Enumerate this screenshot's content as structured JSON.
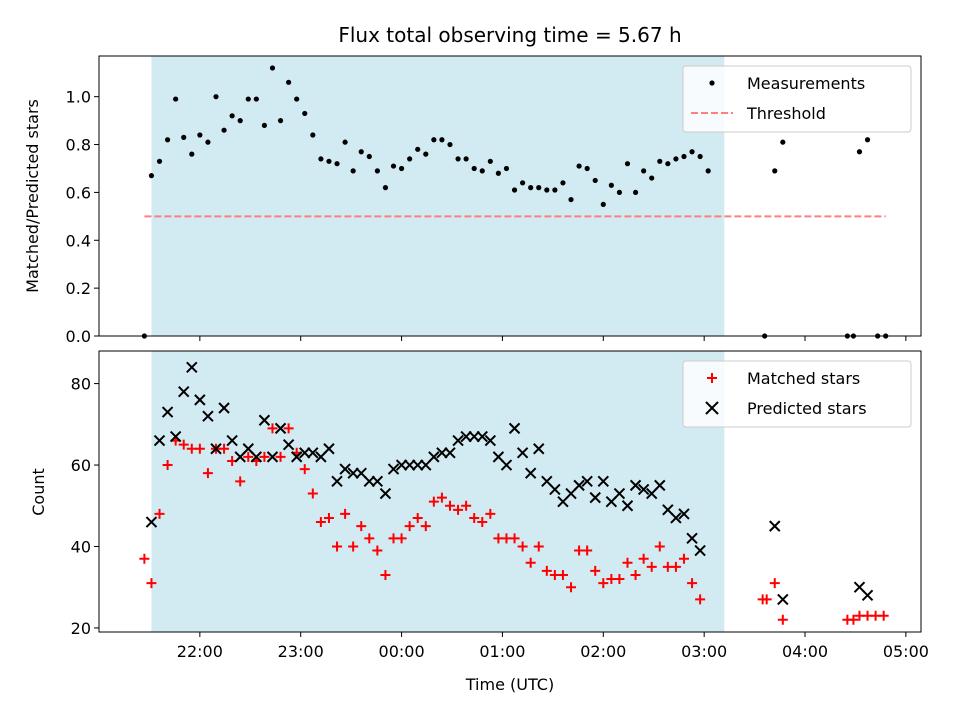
{
  "chart_data": [
    {
      "type": "scatter",
      "title": "Flux total observing time = 5.67 h",
      "xlabel": "",
      "ylabel": "Matched/Predicted stars",
      "ylim": [
        0,
        1.17
      ],
      "yticks": [
        0.0,
        0.2,
        0.4,
        0.6,
        0.8,
        1.0
      ],
      "ytick_labels": [
        "0.0",
        "0.2",
        "0.4",
        "0.6",
        "0.8",
        "1.0"
      ],
      "x_unit": "hours",
      "xlim": [
        21.0,
        5.15
      ],
      "shaded_span": [
        21.52,
        3.2
      ],
      "shaded_color": "#add8e6",
      "legend_position": "upper right",
      "series": [
        {
          "name": "Measurements",
          "marker": "dot",
          "color": "#000000",
          "points": [
            [
              21.45,
              0.0
            ],
            [
              21.52,
              0.67
            ],
            [
              21.6,
              0.73
            ],
            [
              21.68,
              0.82
            ],
            [
              21.76,
              0.99
            ],
            [
              21.84,
              0.83
            ],
            [
              21.92,
              0.76
            ],
            [
              22.0,
              0.84
            ],
            [
              22.08,
              0.81
            ],
            [
              22.16,
              1.0
            ],
            [
              22.24,
              0.86
            ],
            [
              22.32,
              0.92
            ],
            [
              22.4,
              0.9
            ],
            [
              22.48,
              0.99
            ],
            [
              22.56,
              0.99
            ],
            [
              22.64,
              0.88
            ],
            [
              22.72,
              1.12
            ],
            [
              22.8,
              0.9
            ],
            [
              22.88,
              1.06
            ],
            [
              22.96,
              0.99
            ],
            [
              23.04,
              0.93
            ],
            [
              23.12,
              0.84
            ],
            [
              23.2,
              0.74
            ],
            [
              23.28,
              0.73
            ],
            [
              23.36,
              0.72
            ],
            [
              23.44,
              0.81
            ],
            [
              23.52,
              0.69
            ],
            [
              23.6,
              0.77
            ],
            [
              23.68,
              0.75
            ],
            [
              23.76,
              0.69
            ],
            [
              23.84,
              0.62
            ],
            [
              23.92,
              0.71
            ],
            [
              24.0,
              0.7
            ],
            [
              24.08,
              0.74
            ],
            [
              24.16,
              0.78
            ],
            [
              24.24,
              0.76
            ],
            [
              24.32,
              0.82
            ],
            [
              24.4,
              0.82
            ],
            [
              24.48,
              0.8
            ],
            [
              24.56,
              0.74
            ],
            [
              24.64,
              0.74
            ],
            [
              24.72,
              0.7
            ],
            [
              24.8,
              0.69
            ],
            [
              24.88,
              0.73
            ],
            [
              24.96,
              0.68
            ],
            [
              25.04,
              0.7
            ],
            [
              25.12,
              0.61
            ],
            [
              25.2,
              0.64
            ],
            [
              25.28,
              0.62
            ],
            [
              25.36,
              0.62
            ],
            [
              25.44,
              0.61
            ],
            [
              25.52,
              0.61
            ],
            [
              25.6,
              0.64
            ],
            [
              25.68,
              0.57
            ],
            [
              25.76,
              0.71
            ],
            [
              25.84,
              0.7
            ],
            [
              25.92,
              0.65
            ],
            [
              26.0,
              0.55
            ],
            [
              26.08,
              0.63
            ],
            [
              26.16,
              0.6
            ],
            [
              26.24,
              0.72
            ],
            [
              26.32,
              0.6
            ],
            [
              26.4,
              0.69
            ],
            [
              26.48,
              0.66
            ],
            [
              26.56,
              0.73
            ],
            [
              26.64,
              0.72
            ],
            [
              26.72,
              0.74
            ],
            [
              26.8,
              0.75
            ],
            [
              26.88,
              0.77
            ],
            [
              26.96,
              0.75
            ],
            [
              27.04,
              0.69
            ],
            [
              27.6,
              0.0
            ],
            [
              27.7,
              0.69
            ],
            [
              27.78,
              0.81
            ],
            [
              28.42,
              0.0
            ],
            [
              28.48,
              0.0
            ],
            [
              28.54,
              0.77
            ],
            [
              28.62,
              0.82
            ],
            [
              28.72,
              0.0
            ],
            [
              28.8,
              0.0
            ]
          ]
        },
        {
          "name": "Threshold",
          "type": "line",
          "style": "dashed",
          "color": "#ff7f7f",
          "y": 0.5,
          "x_range": [
            21.45,
            28.8
          ]
        }
      ]
    },
    {
      "type": "scatter",
      "title": "",
      "xlabel": "Time (UTC)",
      "ylabel": "Count",
      "ylim": [
        19,
        88
      ],
      "yticks": [
        20,
        40,
        60,
        80
      ],
      "ytick_labels": [
        "20",
        "40",
        "60",
        "80"
      ],
      "x_unit": "hours",
      "xlim": [
        21.0,
        5.15
      ],
      "xticks": [
        22,
        23,
        0,
        1,
        2,
        3,
        4,
        5
      ],
      "xtick_labels": [
        "22:00",
        "23:00",
        "00:00",
        "01:00",
        "02:00",
        "03:00",
        "04:00",
        "05:00"
      ],
      "shaded_span": [
        21.52,
        3.2
      ],
      "shaded_color": "#add8e6",
      "legend_position": "upper right",
      "series": [
        {
          "name": "Matched stars",
          "marker": "plus",
          "color": "#ff0000",
          "points": [
            [
              21.45,
              37
            ],
            [
              21.52,
              31
            ],
            [
              21.6,
              48
            ],
            [
              21.68,
              60
            ],
            [
              21.76,
              66
            ],
            [
              21.84,
              65
            ],
            [
              21.92,
              64
            ],
            [
              22.0,
              64
            ],
            [
              22.08,
              58
            ],
            [
              22.16,
              64
            ],
            [
              22.24,
              64
            ],
            [
              22.32,
              61
            ],
            [
              22.4,
              56
            ],
            [
              22.48,
              62
            ],
            [
              22.56,
              61
            ],
            [
              22.64,
              62
            ],
            [
              22.72,
              69
            ],
            [
              22.8,
              62
            ],
            [
              22.88,
              69
            ],
            [
              22.96,
              63
            ],
            [
              23.04,
              59
            ],
            [
              23.12,
              53
            ],
            [
              23.2,
              46
            ],
            [
              23.28,
              47
            ],
            [
              23.36,
              40
            ],
            [
              23.44,
              48
            ],
            [
              23.52,
              40
            ],
            [
              23.6,
              45
            ],
            [
              23.68,
              42
            ],
            [
              23.76,
              39
            ],
            [
              23.84,
              33
            ],
            [
              23.92,
              42
            ],
            [
              24.0,
              42
            ],
            [
              24.08,
              45
            ],
            [
              24.16,
              47
            ],
            [
              24.24,
              45
            ],
            [
              24.32,
              51
            ],
            [
              24.4,
              52
            ],
            [
              24.48,
              50
            ],
            [
              24.56,
              49
            ],
            [
              24.64,
              50
            ],
            [
              24.72,
              47
            ],
            [
              24.8,
              46
            ],
            [
              24.88,
              48
            ],
            [
              24.96,
              42
            ],
            [
              25.04,
              42
            ],
            [
              25.12,
              42
            ],
            [
              25.2,
              40
            ],
            [
              25.28,
              36
            ],
            [
              25.36,
              40
            ],
            [
              25.44,
              34
            ],
            [
              25.52,
              33
            ],
            [
              25.6,
              33
            ],
            [
              25.68,
              30
            ],
            [
              25.76,
              39
            ],
            [
              25.84,
              39
            ],
            [
              25.92,
              34
            ],
            [
              26.0,
              31
            ],
            [
              26.08,
              32
            ],
            [
              26.16,
              32
            ],
            [
              26.24,
              36
            ],
            [
              26.32,
              33
            ],
            [
              26.4,
              37
            ],
            [
              26.48,
              35
            ],
            [
              26.56,
              40
            ],
            [
              26.64,
              35
            ],
            [
              26.72,
              35
            ],
            [
              26.8,
              37
            ],
            [
              26.88,
              31
            ],
            [
              26.96,
              27
            ],
            [
              27.58,
              27
            ],
            [
              27.62,
              27
            ],
            [
              27.7,
              31
            ],
            [
              27.78,
              22
            ],
            [
              28.42,
              22
            ],
            [
              28.48,
              22
            ],
            [
              28.54,
              23
            ],
            [
              28.62,
              23
            ],
            [
              28.7,
              23
            ],
            [
              28.78,
              23
            ]
          ]
        },
        {
          "name": "Predicted stars",
          "marker": "x",
          "color": "#000000",
          "points": [
            [
              21.52,
              46
            ],
            [
              21.6,
              66
            ],
            [
              21.68,
              73
            ],
            [
              21.76,
              67
            ],
            [
              21.84,
              78
            ],
            [
              21.92,
              84
            ],
            [
              22.0,
              76
            ],
            [
              22.08,
              72
            ],
            [
              22.16,
              64
            ],
            [
              22.24,
              74
            ],
            [
              22.32,
              66
            ],
            [
              22.4,
              62
            ],
            [
              22.48,
              64
            ],
            [
              22.56,
              62
            ],
            [
              22.64,
              71
            ],
            [
              22.72,
              62
            ],
            [
              22.8,
              69
            ],
            [
              22.88,
              65
            ],
            [
              22.96,
              62
            ],
            [
              23.04,
              63
            ],
            [
              23.12,
              63
            ],
            [
              23.2,
              62
            ],
            [
              23.28,
              64
            ],
            [
              23.36,
              56
            ],
            [
              23.44,
              59
            ],
            [
              23.52,
              58
            ],
            [
              23.6,
              58
            ],
            [
              23.68,
              56
            ],
            [
              23.76,
              56
            ],
            [
              23.84,
              53
            ],
            [
              23.92,
              59
            ],
            [
              24.0,
              60
            ],
            [
              24.08,
              60
            ],
            [
              24.16,
              60
            ],
            [
              24.24,
              60
            ],
            [
              24.32,
              62
            ],
            [
              24.4,
              63
            ],
            [
              24.48,
              63
            ],
            [
              24.56,
              66
            ],
            [
              24.64,
              67
            ],
            [
              24.72,
              67
            ],
            [
              24.8,
              67
            ],
            [
              24.88,
              66
            ],
            [
              24.96,
              62
            ],
            [
              25.04,
              60
            ],
            [
              25.12,
              69
            ],
            [
              25.2,
              63
            ],
            [
              25.28,
              58
            ],
            [
              25.36,
              64
            ],
            [
              25.44,
              56
            ],
            [
              25.52,
              54
            ],
            [
              25.6,
              51
            ],
            [
              25.68,
              53
            ],
            [
              25.76,
              55
            ],
            [
              25.84,
              56
            ],
            [
              25.92,
              52
            ],
            [
              26.0,
              56
            ],
            [
              26.08,
              51
            ],
            [
              26.16,
              53
            ],
            [
              26.24,
              50
            ],
            [
              26.32,
              55
            ],
            [
              26.4,
              54
            ],
            [
              26.48,
              53
            ],
            [
              26.56,
              55
            ],
            [
              26.64,
              49
            ],
            [
              26.72,
              47
            ],
            [
              26.8,
              48
            ],
            [
              26.88,
              42
            ],
            [
              26.96,
              39
            ],
            [
              27.7,
              45
            ],
            [
              27.78,
              27
            ],
            [
              28.54,
              30
            ],
            [
              28.62,
              28
            ]
          ]
        }
      ]
    }
  ]
}
